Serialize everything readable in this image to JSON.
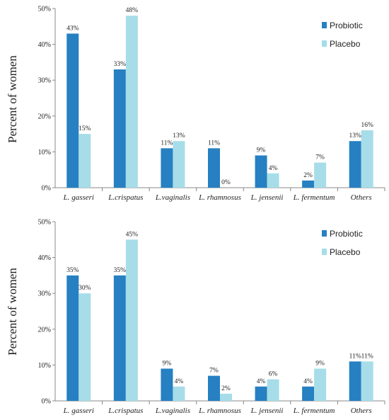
{
  "colors": {
    "probiotic": "#2680c2",
    "placebo": "#a6dde9",
    "axis": "#888888"
  },
  "chart_data": [
    {
      "type": "bar",
      "ylabel": "Percent of women",
      "ylim": [
        0,
        50
      ],
      "yticks": [
        "0%",
        "10%",
        "20%",
        "30%",
        "40%",
        "50%"
      ],
      "categories": [
        "L. gasseri",
        "L.crispatus",
        "L.vaginalis",
        "L. rhamnosus",
        "L. jensenii",
        "L. fermentum",
        "Others"
      ],
      "legend_position": "top-right",
      "series": [
        {
          "name": "Probiotic",
          "values": [
            43,
            33,
            11,
            11,
            9,
            2,
            13
          ],
          "labels": [
            "43%",
            "33%",
            "11%",
            "11%",
            "9%",
            "2%",
            "13%"
          ]
        },
        {
          "name": "Placebo",
          "values": [
            15,
            48,
            13,
            0,
            4,
            7,
            16
          ],
          "labels": [
            "15%",
            "48%",
            "13%",
            "0%",
            "4%",
            "7%",
            "16%"
          ]
        }
      ]
    },
    {
      "type": "bar",
      "ylabel": "Percent of women",
      "ylim": [
        0,
        50
      ],
      "yticks": [
        "0%",
        "10%",
        "20%",
        "30%",
        "40%",
        "50%"
      ],
      "categories": [
        "L. gasseri",
        "L.crispatus",
        "L.vaginalis",
        "L. rhamnosus",
        "L. jensenii",
        "L. fermentum",
        "Others"
      ],
      "legend_position": "top-right",
      "series": [
        {
          "name": "Probiotic",
          "values": [
            35,
            35,
            9,
            7,
            4,
            4,
            11
          ],
          "labels": [
            "35%",
            "35%",
            "9%",
            "7%",
            "4%",
            "4%",
            "11%"
          ]
        },
        {
          "name": "Placebo",
          "values": [
            30,
            45,
            4,
            2,
            6,
            9,
            11
          ],
          "labels": [
            "30%",
            "45%",
            "4%",
            "2%",
            "6%",
            "9%",
            "11%"
          ]
        }
      ]
    }
  ]
}
